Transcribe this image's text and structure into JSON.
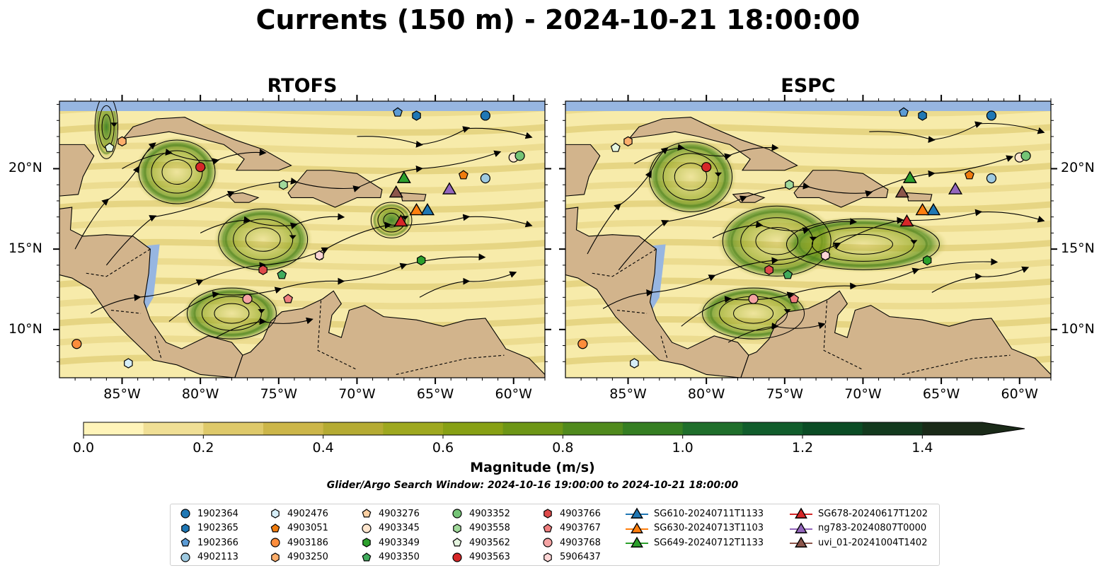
{
  "title": "Currents (150 m) - 2024-10-21 18:00:00",
  "panels": [
    {
      "title": "RTOFS"
    },
    {
      "title": "ESPC"
    }
  ],
  "map": {
    "lon_range": [
      -89,
      -58
    ],
    "lat_range": [
      7,
      24.2
    ],
    "lon_ticks": [
      "85°W",
      "80°W",
      "75°W",
      "70°W",
      "65°W",
      "60°W"
    ],
    "lat_ticks": [
      "20°N",
      "15°N",
      "10°N"
    ],
    "colors": {
      "ocean": "#97b6e1",
      "land": "#d2b48c"
    }
  },
  "colorbar": {
    "label": "Magnitude (m/s)",
    "ticks": [
      "0.0",
      "0.2",
      "0.4",
      "0.6",
      "0.8",
      "1.0",
      "1.2",
      "1.4"
    ],
    "range": [
      0,
      1.5
    ],
    "extend": "max",
    "colors": [
      "#fff4b9",
      "#f0df95",
      "#dec96a",
      "#ccb649",
      "#b5ab33",
      "#9ea81f",
      "#87a014",
      "#6d9616",
      "#508a1d",
      "#357e22",
      "#1f6e2b",
      "#115d2c",
      "#0b4c25",
      "#133a1e",
      "#1a2a18"
    ]
  },
  "search_window": "Glider/Argo Search Window: 2024-10-16 19:00:00 to 2024-10-21 18:00:00",
  "legend": {
    "columns": [
      [
        {
          "label": "1902364",
          "marker": "circle",
          "color": "#1f77b4"
        },
        {
          "label": "1902365",
          "marker": "hexagon",
          "color": "#1f77b4"
        },
        {
          "label": "1902366",
          "marker": "pentagon",
          "color": "#5b9bd5"
        },
        {
          "label": "4902113",
          "marker": "circle",
          "color": "#9ecae1"
        }
      ],
      [
        {
          "label": "4902476",
          "marker": "hexagon",
          "color": "#d6eef8"
        },
        {
          "label": "4903051",
          "marker": "pentagon",
          "color": "#f07c0e"
        },
        {
          "label": "4903186",
          "marker": "circle",
          "color": "#fd8d3c"
        },
        {
          "label": "4903250",
          "marker": "hexagon",
          "color": "#fdae6b"
        }
      ],
      [
        {
          "label": "4903276",
          "marker": "pentagon",
          "color": "#fdd0a2"
        },
        {
          "label": "4903345",
          "marker": "circle",
          "color": "#fee6ce"
        },
        {
          "label": "4903349",
          "marker": "hexagon",
          "color": "#2ca02c"
        },
        {
          "label": "4903350",
          "marker": "pentagon",
          "color": "#41ab5d"
        }
      ],
      [
        {
          "label": "4903352",
          "marker": "circle",
          "color": "#74c476"
        },
        {
          "label": "4903558",
          "marker": "hexagon",
          "color": "#a1d99b"
        },
        {
          "label": "4903562",
          "marker": "pentagon",
          "color": "#e5f5e0"
        },
        {
          "label": "4903563",
          "marker": "circle",
          "color": "#d62728"
        }
      ],
      [
        {
          "label": "4903766",
          "marker": "hexagon",
          "color": "#de4a4a"
        },
        {
          "label": "4903767",
          "marker": "pentagon",
          "color": "#f07e7e"
        },
        {
          "label": "4903768",
          "marker": "circle",
          "color": "#f4a3a3"
        },
        {
          "label": "5906437",
          "marker": "hexagon",
          "color": "#fcd5d5"
        }
      ],
      [
        {
          "label": "SG610-20240711T1133",
          "marker": "triangle-line",
          "color": "#1f77b4"
        },
        {
          "label": "SG630-20240713T1103",
          "marker": "triangle-line",
          "color": "#ff7f0e"
        },
        {
          "label": "SG649-20240712T1133",
          "marker": "triangle-line",
          "color": "#2ca02c"
        }
      ],
      [
        {
          "label": "SG678-20240617T1202",
          "marker": "triangle-line",
          "color": "#d62728"
        },
        {
          "label": "ng783-20240807T0000",
          "marker": "triangle-line",
          "color": "#9467bd"
        },
        {
          "label": "uvi_01-20241004T1402",
          "marker": "triangle-line",
          "color": "#8c564b"
        }
      ]
    ]
  },
  "floats": [
    {
      "lon": -61.8,
      "lat": 23.3,
      "marker": "circle",
      "color": "#1f77b4"
    },
    {
      "lon": -66.2,
      "lat": 23.3,
      "marker": "hexagon",
      "color": "#1f77b4"
    },
    {
      "lon": -67.4,
      "lat": 23.5,
      "marker": "pentagon",
      "color": "#5b9bd5"
    },
    {
      "lon": -61.8,
      "lat": 19.4,
      "marker": "circle",
      "color": "#9ecae1"
    },
    {
      "lon": -84.6,
      "lat": 7.9,
      "marker": "hexagon",
      "color": "#d6eef8"
    },
    {
      "lon": -63.2,
      "lat": 19.6,
      "marker": "pentagon",
      "color": "#f07c0e"
    },
    {
      "lon": -87.9,
      "lat": 9.1,
      "marker": "circle",
      "color": "#fd8d3c"
    },
    {
      "lon": -85.0,
      "lat": 21.7,
      "marker": "hexagon",
      "color": "#fdae6b"
    },
    {
      "lon": -72.4,
      "lat": 14.6,
      "marker": "pentagon",
      "color": "#fdd0a2"
    },
    {
      "lon": -60.0,
      "lat": 20.7,
      "marker": "circle",
      "color": "#fee6ce"
    },
    {
      "lon": -65.9,
      "lat": 14.3,
      "marker": "hexagon",
      "color": "#2ca02c"
    },
    {
      "lon": -74.8,
      "lat": 13.4,
      "marker": "pentagon",
      "color": "#41ab5d"
    },
    {
      "lon": -59.6,
      "lat": 20.8,
      "marker": "circle",
      "color": "#74c476"
    },
    {
      "lon": -74.7,
      "lat": 19.0,
      "marker": "hexagon",
      "color": "#a1d99b"
    },
    {
      "lon": -85.8,
      "lat": 21.3,
      "marker": "pentagon",
      "color": "#e5f5e0"
    },
    {
      "lon": -80.0,
      "lat": 20.1,
      "marker": "circle",
      "color": "#d62728"
    },
    {
      "lon": -76.0,
      "lat": 13.7,
      "marker": "hexagon",
      "color": "#de4a4a"
    },
    {
      "lon": -74.4,
      "lat": 11.9,
      "marker": "pentagon",
      "color": "#f07e7e"
    },
    {
      "lon": -77.0,
      "lat": 11.9,
      "marker": "circle",
      "color": "#f4a3a3"
    },
    {
      "lon": -72.4,
      "lat": 14.6,
      "marker": "hexagon",
      "color": "#fcd5d5"
    }
  ],
  "gliders": [
    {
      "lon": -65.5,
      "lat": 17.4,
      "color": "#1f77b4"
    },
    {
      "lon": -66.2,
      "lat": 17.4,
      "color": "#ff7f0e"
    },
    {
      "lon": -67.0,
      "lat": 19.4,
      "color": "#2ca02c"
    },
    {
      "lon": -67.2,
      "lat": 16.7,
      "color": "#d62728"
    },
    {
      "lon": -64.1,
      "lat": 18.7,
      "color": "#9467bd"
    },
    {
      "lon": -67.5,
      "lat": 18.5,
      "color": "#8c564b"
    }
  ]
}
